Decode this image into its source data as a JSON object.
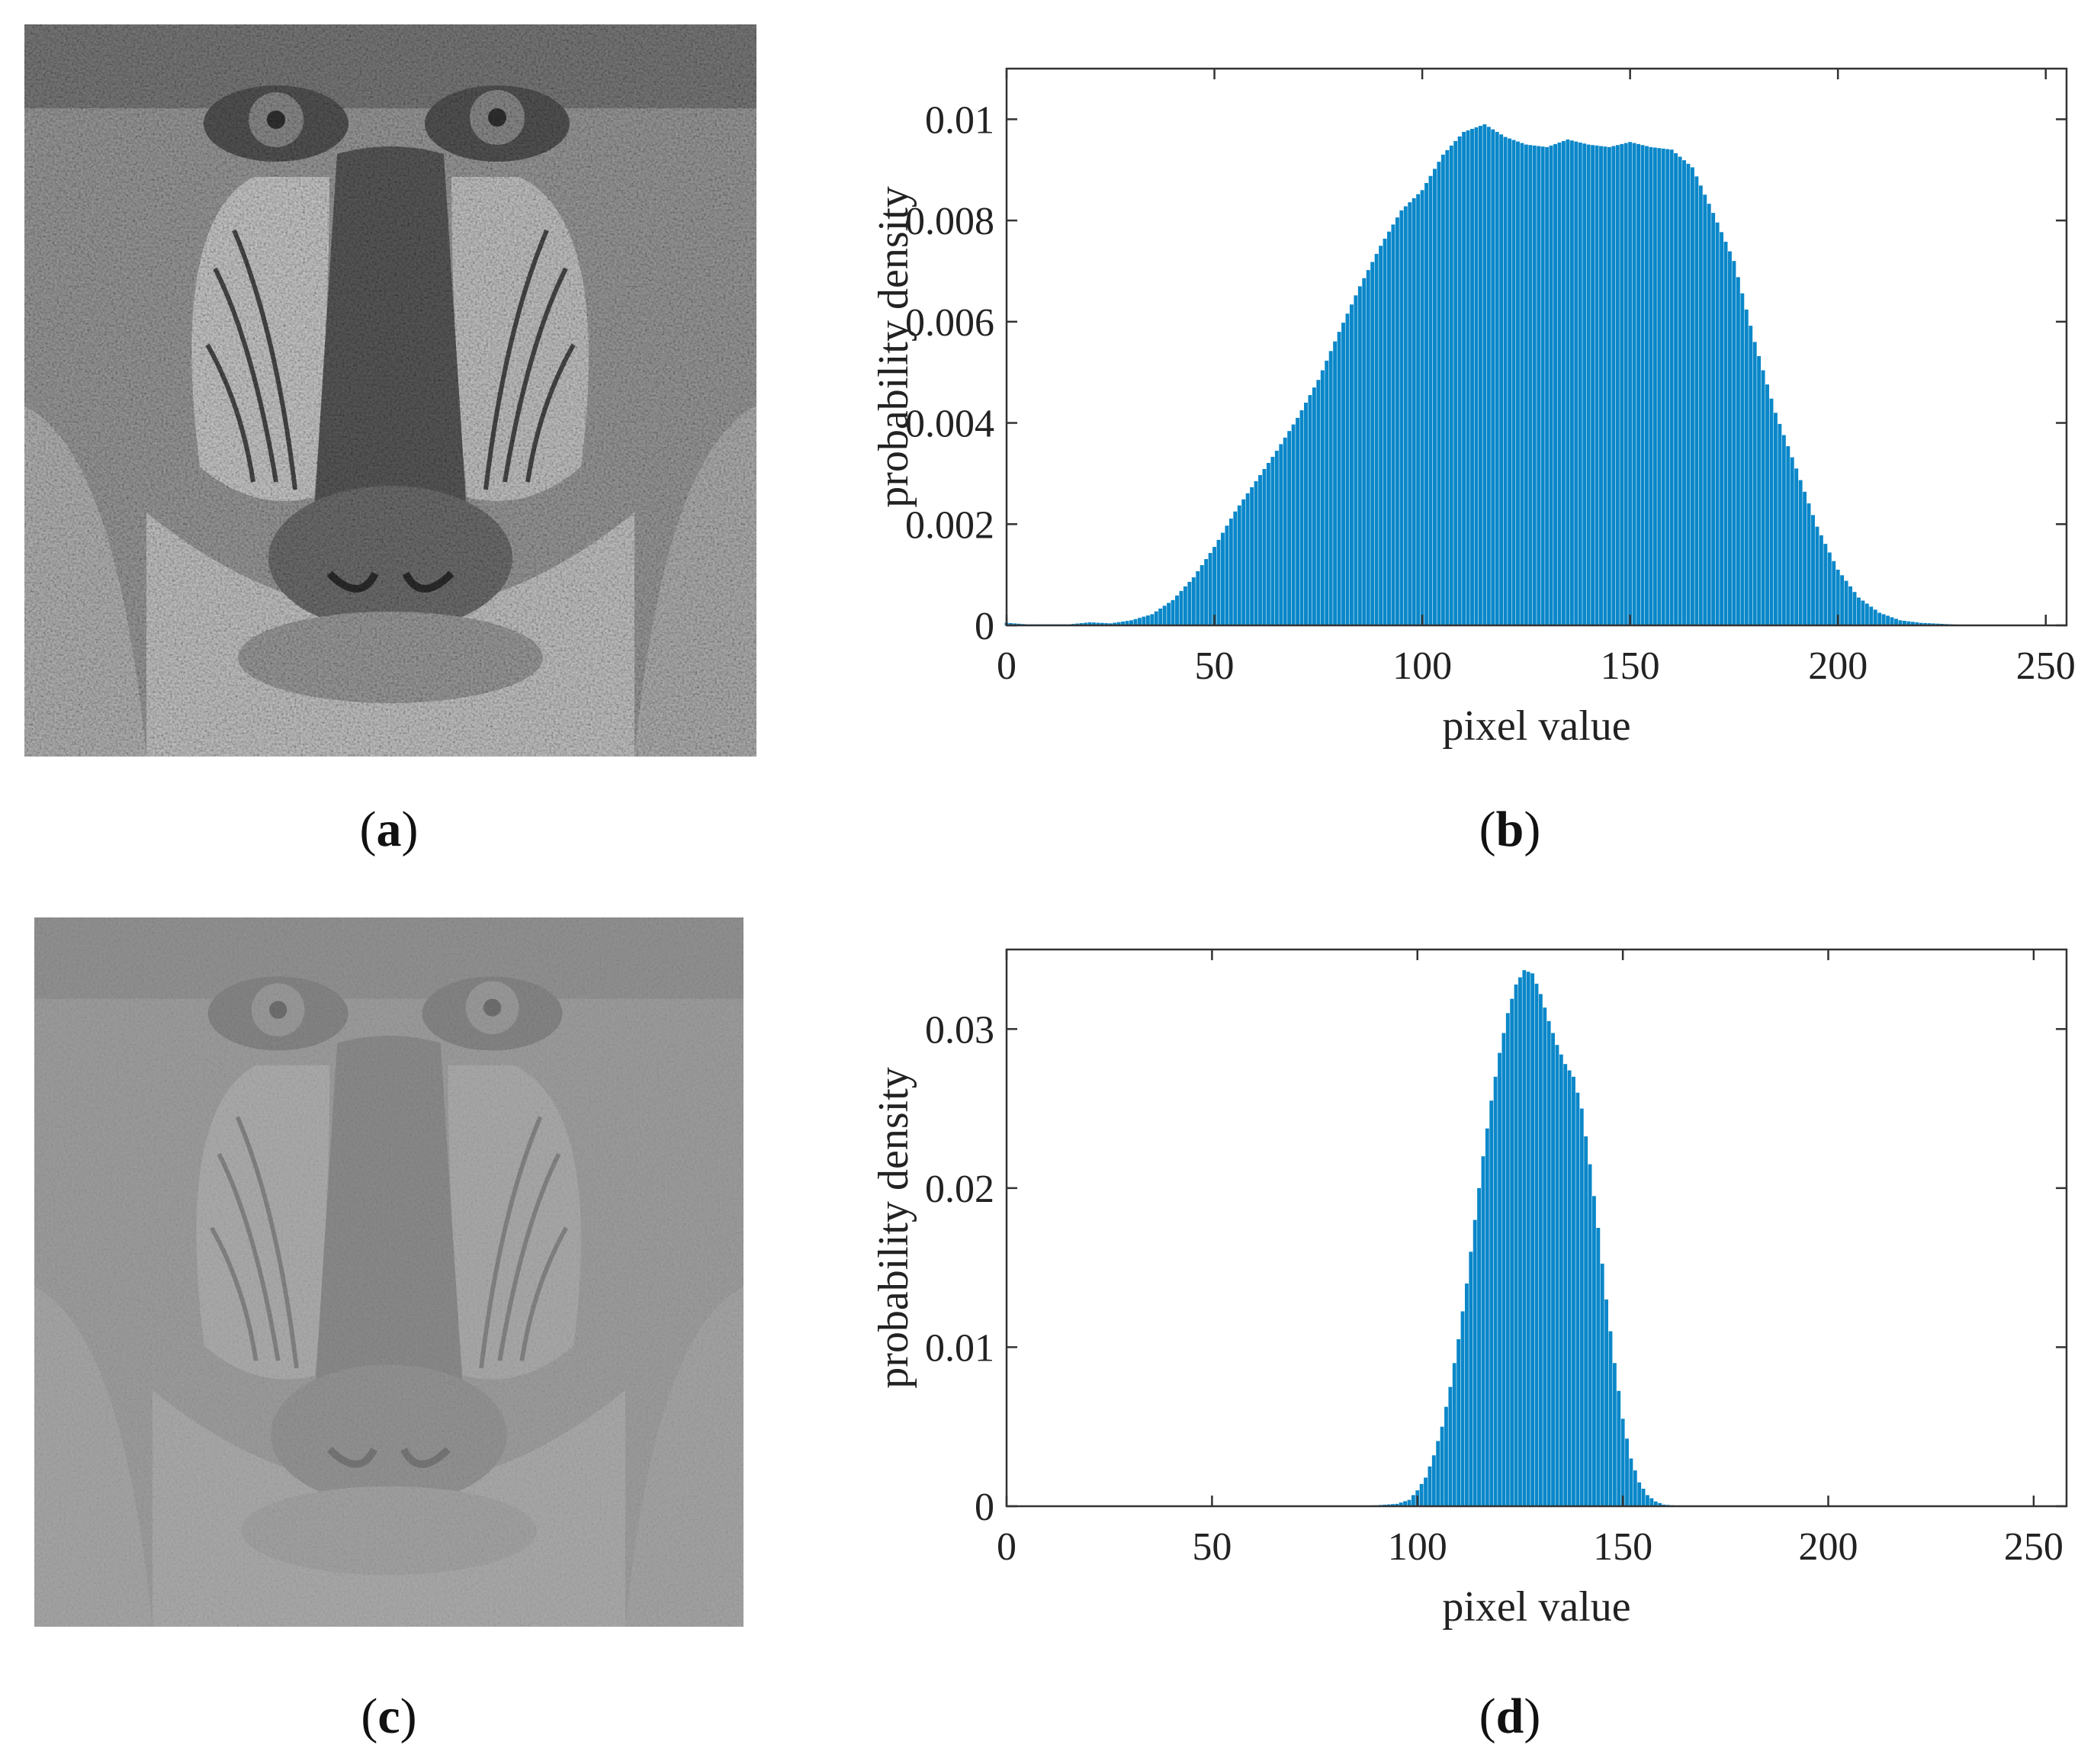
{
  "figure": {
    "panels": [
      {
        "id": "a",
        "caption_open": "(",
        "caption_letter": "a",
        "caption_close": ")",
        "content": "baboon-photo",
        "contrast": "normal"
      },
      {
        "id": "b",
        "caption_open": "(",
        "caption_letter": "b",
        "caption_close": ")",
        "content": "histogram"
      },
      {
        "id": "c",
        "caption_open": "(",
        "caption_letter": "c",
        "caption_close": ")",
        "content": "baboon-photo",
        "contrast": "low"
      },
      {
        "id": "d",
        "caption_open": "(",
        "caption_letter": "d",
        "caption_close": ")",
        "content": "histogram"
      }
    ]
  },
  "chart_data": [
    {
      "panel": "b",
      "type": "bar",
      "xlabel": "pixel value",
      "ylabel": "probability density",
      "xlim": [
        0,
        255
      ],
      "ylim": [
        0,
        0.011
      ],
      "xticks": [
        0,
        50,
        100,
        150,
        200,
        250
      ],
      "yticks": [
        0,
        0.002,
        0.004,
        0.006,
        0.008,
        0.01
      ],
      "ytick_labels": [
        "0",
        "0.002",
        "0.004",
        "0.006",
        "0.008",
        "0.01"
      ],
      "bar_color": "#0a87c9",
      "grid": false,
      "x": [
        0,
        5,
        10,
        15,
        20,
        25,
        30,
        35,
        40,
        45,
        50,
        55,
        60,
        65,
        70,
        75,
        80,
        85,
        90,
        95,
        100,
        105,
        110,
        115,
        120,
        125,
        130,
        135,
        140,
        145,
        150,
        155,
        160,
        165,
        170,
        175,
        180,
        185,
        190,
        195,
        200,
        205,
        210,
        215,
        220,
        225,
        230,
        235,
        240,
        245,
        250,
        255
      ],
      "values": [
        5e-05,
        2e-05,
        2e-05,
        2e-05,
        6e-05,
        4e-05,
        0.0001,
        0.00022,
        0.0005,
        0.00095,
        0.00155,
        0.00225,
        0.00285,
        0.00345,
        0.0041,
        0.00485,
        0.0058,
        0.0067,
        0.0075,
        0.0082,
        0.0086,
        0.0093,
        0.00975,
        0.0099,
        0.00965,
        0.0095,
        0.00945,
        0.0096,
        0.0095,
        0.00945,
        0.00955,
        0.00945,
        0.0094,
        0.00905,
        0.00815,
        0.0072,
        0.0056,
        0.0042,
        0.0031,
        0.00195,
        0.0011,
        0.00055,
        0.00025,
        0.0001,
        5e-05,
        3e-05,
        1e-05,
        0,
        0,
        0,
        0,
        0
      ]
    },
    {
      "panel": "d",
      "type": "bar",
      "xlabel": "pixel value",
      "ylabel": "probability density",
      "xlim": [
        0,
        258
      ],
      "ylim": [
        0,
        0.035
      ],
      "xticks": [
        0,
        50,
        100,
        150,
        200,
        250
      ],
      "yticks": [
        0,
        0.01,
        0.02,
        0.03
      ],
      "ytick_labels": [
        "0",
        "0.01",
        "0.02",
        "0.03"
      ],
      "bar_color": "#0a87c9",
      "grid": false,
      "x": [
        80,
        85,
        90,
        95,
        98,
        100,
        102,
        104,
        106,
        108,
        110,
        112,
        114,
        116,
        118,
        120,
        122,
        124,
        126,
        128,
        130,
        132,
        134,
        136,
        138,
        140,
        142,
        144,
        146,
        148,
        150,
        152,
        154,
        156,
        158,
        160,
        165
      ],
      "values": [
        5e-05,
        3e-05,
        6e-05,
        0.00015,
        0.0004,
        0.001,
        0.0018,
        0.0032,
        0.005,
        0.0075,
        0.0105,
        0.014,
        0.018,
        0.022,
        0.0255,
        0.0285,
        0.031,
        0.0328,
        0.0337,
        0.0335,
        0.0322,
        0.0305,
        0.029,
        0.0278,
        0.027,
        0.025,
        0.0215,
        0.0175,
        0.013,
        0.009,
        0.0055,
        0.003,
        0.0015,
        0.0007,
        0.0003,
        0.0001,
        0
      ]
    }
  ]
}
